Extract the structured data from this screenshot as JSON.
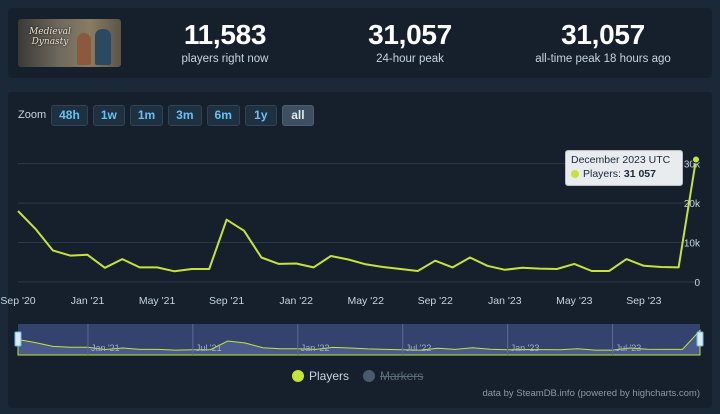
{
  "header": {
    "logo_text": "Medieval Dynasty",
    "stats": [
      {
        "value": "11,583",
        "label": "players right now"
      },
      {
        "value": "31,057",
        "label": "24-hour peak"
      },
      {
        "value": "31,057",
        "label": "all-time peak 18 hours ago"
      }
    ]
  },
  "zoom": {
    "label": "Zoom",
    "buttons": [
      "48h",
      "1w",
      "1m",
      "3m",
      "6m",
      "1y",
      "all"
    ],
    "active": "all"
  },
  "tooltip": {
    "title": "December 2023 UTC",
    "series_label": "Players:",
    "value": "31 057"
  },
  "legend": {
    "items": [
      {
        "name": "Players",
        "color": "#c6e33a",
        "enabled": true
      },
      {
        "name": "Markers",
        "color": "#4a5a6a",
        "enabled": false
      }
    ]
  },
  "credits": "data by SteamDB.info (powered by highcharts.com)",
  "colors": {
    "line": "#c6e33a",
    "navigator_fill": "#3a4a7a",
    "navigator_line": "#c6e33a",
    "grid": "#2a3a4a",
    "axis_text": "#c6d4df"
  },
  "chart_data": {
    "type": "line",
    "title": "",
    "xlabel": "",
    "ylabel": "",
    "x_tick_labels": [
      "Sep '20",
      "Jan '21",
      "May '21",
      "Sep '21",
      "Jan '22",
      "May '22",
      "Sep '22",
      "Jan '23",
      "May '23",
      "Sep '23"
    ],
    "y_tick_labels": [
      "0",
      "10k",
      "20k",
      "30k"
    ],
    "ylim": [
      0,
      36000
    ],
    "grid": true,
    "legend_position": "bottom-center",
    "navigator_labels": [
      "Jan '21",
      "Jul '21",
      "Jan '22",
      "Jul '22",
      "Jan '23",
      "Jul '23"
    ],
    "series": [
      {
        "name": "Players",
        "x": [
          "2020-09",
          "2020-10",
          "2020-11",
          "2020-12",
          "2021-01",
          "2021-02",
          "2021-03",
          "2021-04",
          "2021-05",
          "2021-06",
          "2021-07",
          "2021-08",
          "2021-09",
          "2021-10",
          "2021-11",
          "2021-12",
          "2022-01",
          "2022-02",
          "2022-03",
          "2022-04",
          "2022-05",
          "2022-06",
          "2022-07",
          "2022-08",
          "2022-09",
          "2022-10",
          "2022-11",
          "2022-12",
          "2023-01",
          "2023-02",
          "2023-03",
          "2023-04",
          "2023-05",
          "2023-06",
          "2023-07",
          "2023-08",
          "2023-09",
          "2023-10",
          "2023-11",
          "2023-12"
        ],
        "values": [
          18000,
          13500,
          8000,
          6700,
          6900,
          3600,
          5800,
          3700,
          3700,
          2700,
          3300,
          3300,
          15800,
          13000,
          6200,
          4600,
          4700,
          3700,
          6600,
          5700,
          4500,
          3800,
          3300,
          2800,
          5400,
          3700,
          6200,
          4100,
          3100,
          3600,
          3400,
          3300,
          4600,
          2800,
          2800,
          5800,
          4100,
          3800,
          3700,
          31057
        ]
      }
    ]
  }
}
